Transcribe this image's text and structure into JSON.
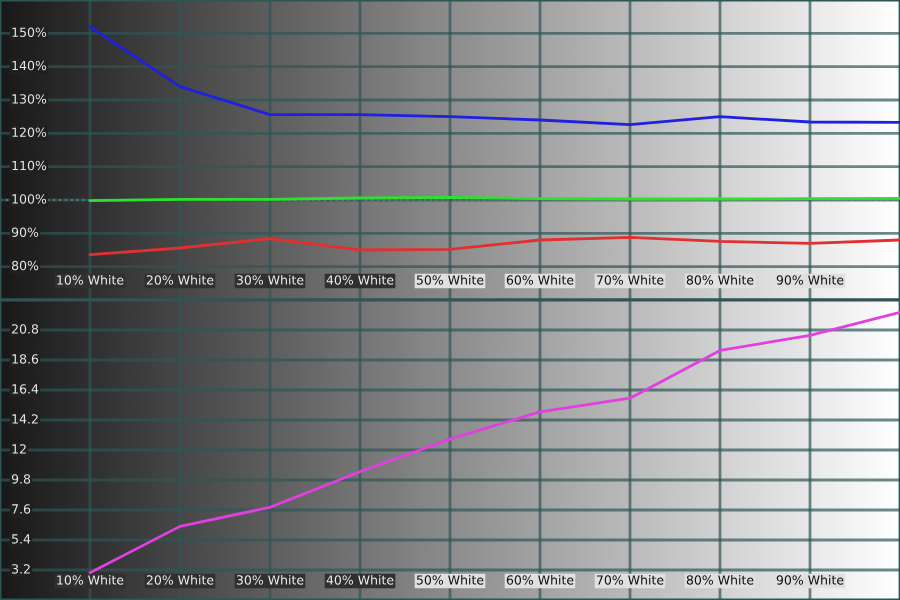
{
  "chart_data": [
    {
      "type": "line",
      "x": [
        10,
        20,
        30,
        40,
        50,
        60,
        70,
        80,
        90,
        100
      ],
      "xlim": [
        0,
        100
      ],
      "xticks": [
        {
          "value": 10,
          "label": "10% White"
        },
        {
          "value": 20,
          "label": "20% White"
        },
        {
          "value": 30,
          "label": "30% White"
        },
        {
          "value": 40,
          "label": "40% White"
        },
        {
          "value": 50,
          "label": "50% White"
        },
        {
          "value": 60,
          "label": "60% White"
        },
        {
          "value": 70,
          "label": "70% White"
        },
        {
          "value": 80,
          "label": "80% White"
        },
        {
          "value": 90,
          "label": "90% White"
        }
      ],
      "ylim": [
        70,
        160
      ],
      "yticks": [
        {
          "value": 80,
          "label": "80%"
        },
        {
          "value": 90,
          "label": "90%"
        },
        {
          "value": 100,
          "label": "100%"
        },
        {
          "value": 110,
          "label": "110%"
        },
        {
          "value": 120,
          "label": "120%"
        },
        {
          "value": 130,
          "label": "130%"
        },
        {
          "value": 140,
          "label": "140%"
        },
        {
          "value": 150,
          "label": "150%"
        }
      ],
      "series": [
        {
          "color": "#2020e0",
          "values": [
            152,
            134,
            125.6,
            125.6,
            125,
            124,
            122.6,
            125,
            123.4,
            123.3
          ]
        },
        {
          "color": "#30e030",
          "values": [
            99.8,
            100.2,
            100.2,
            100.6,
            100.8,
            100.4,
            100.3,
            100.3,
            100.4,
            100.5
          ]
        },
        {
          "color": "#e03030",
          "values": [
            83.6,
            85.6,
            88.4,
            85,
            85.2,
            88,
            88.8,
            87.6,
            87,
            88
          ]
        }
      ],
      "ref_lines": [
        {
          "axis": "y",
          "value": 100,
          "color": "#c8c8c8",
          "line_style": "dotted"
        }
      ],
      "grid": true,
      "legend": false,
      "marker": "none",
      "line_style": "solid"
    },
    {
      "type": "line",
      "x": [
        10,
        20,
        30,
        40,
        50,
        60,
        70,
        80,
        90,
        100
      ],
      "xlim": [
        0,
        100
      ],
      "xticks": [
        {
          "value": 10,
          "label": "10% White"
        },
        {
          "value": 20,
          "label": "20% White"
        },
        {
          "value": 30,
          "label": "30% White"
        },
        {
          "value": 40,
          "label": "40% White"
        },
        {
          "value": 50,
          "label": "50% White"
        },
        {
          "value": 60,
          "label": "60% White"
        },
        {
          "value": 70,
          "label": "70% White"
        },
        {
          "value": 80,
          "label": "80% White"
        },
        {
          "value": 90,
          "label": "90% White"
        }
      ],
      "ylim": [
        1,
        23
      ],
      "yticks": [
        3.2,
        5.4,
        7.6,
        9.8,
        {
          "value": 12,
          "label": "12"
        },
        14.2,
        16.4,
        18.6,
        20.8
      ],
      "series": [
        {
          "color": "#e040e0",
          "values": [
            3.0,
            6.4,
            7.8,
            10.4,
            12.8,
            14.8,
            15.8,
            19.3,
            20.4,
            22.1
          ]
        }
      ],
      "grid": true,
      "legend": false,
      "marker": "none",
      "line_style": "solid"
    }
  ]
}
